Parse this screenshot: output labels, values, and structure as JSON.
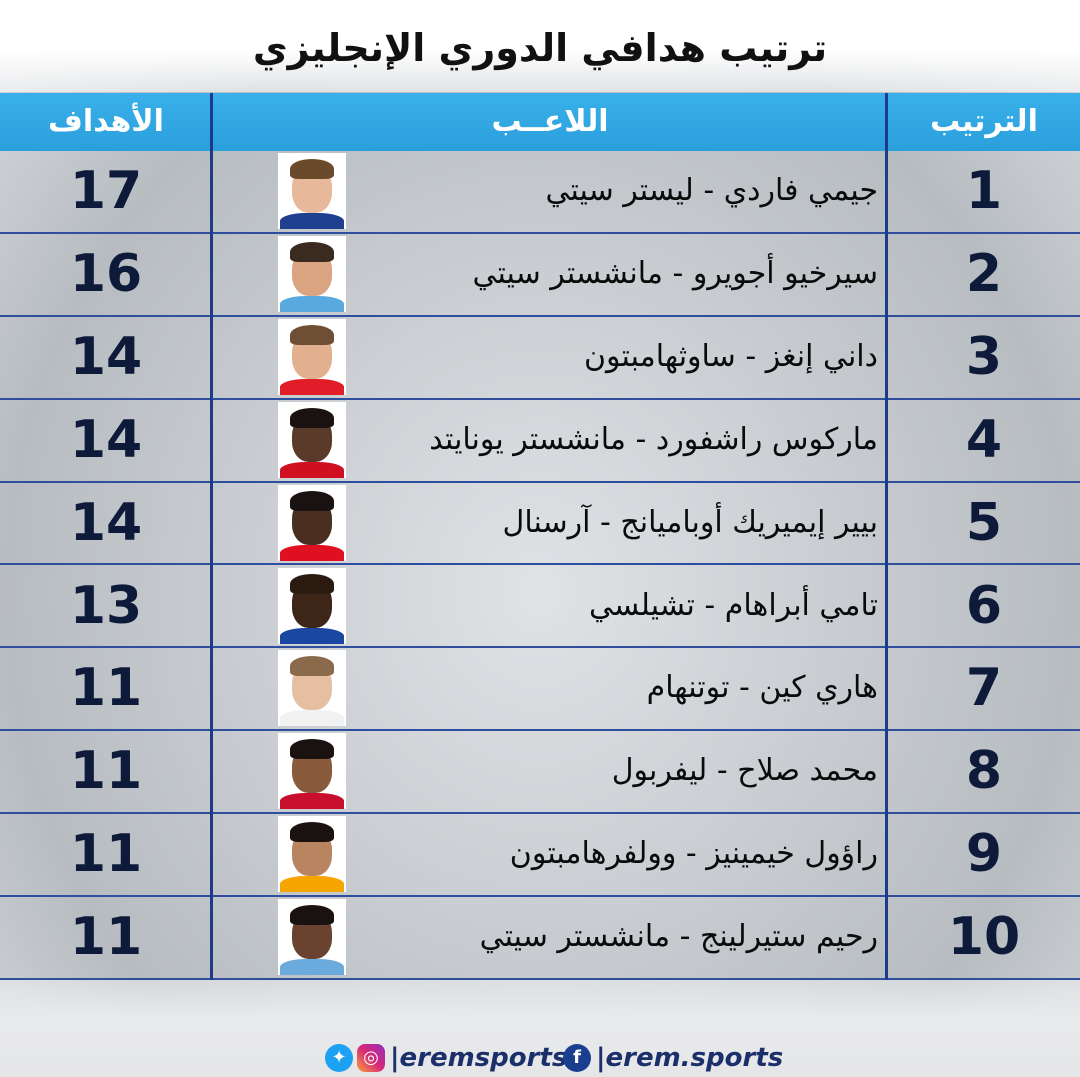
{
  "title": "ترتيب هدافي الدوري الإنجليزي",
  "colors": {
    "header_bg": "#2a9fdc",
    "divider": "#1e3a8c",
    "text_dark": "#0d1a3a"
  },
  "columns": {
    "rank": "الترتيب",
    "player": "اللاعــب",
    "goals": "الأهداف"
  },
  "rows": [
    {
      "rank": "1",
      "player": "جيمي فاردي - ليستر سيتي",
      "goals": "17"
    },
    {
      "rank": "2",
      "player": "سيرخيو أجويرو - مانشستر سيتي",
      "goals": "16"
    },
    {
      "rank": "3",
      "player": "داني إنغز - ساوثهامبتون",
      "goals": "14"
    },
    {
      "rank": "4",
      "player": "ماركوس راشفورد - مانشستر يونايتد",
      "goals": "14"
    },
    {
      "rank": "5",
      "player": "بيير إيميريك أوباميانج - آرسنال",
      "goals": "14"
    },
    {
      "rank": "6",
      "player": "تامي أبراهام - تشيلسي",
      "goals": "13"
    },
    {
      "rank": "7",
      "player": "هاري كين - توتنهام",
      "goals": "11"
    },
    {
      "rank": "8",
      "player": "محمد صلاح - ليفربول",
      "goals": "11"
    },
    {
      "rank": "9",
      "player": "راؤول خيمينيز - وولفرهامبتون",
      "goals": "11"
    },
    {
      "rank": "10",
      "player": "رحيم ستيرلينج - مانشستر سيتي",
      "goals": "11"
    }
  ],
  "footer": {
    "handle_social": "|eremsports",
    "handle_facebook": "|erem.sports",
    "twitter_icon": "twitter-icon",
    "instagram_icon": "instagram-icon",
    "facebook_icon": "facebook-icon"
  }
}
